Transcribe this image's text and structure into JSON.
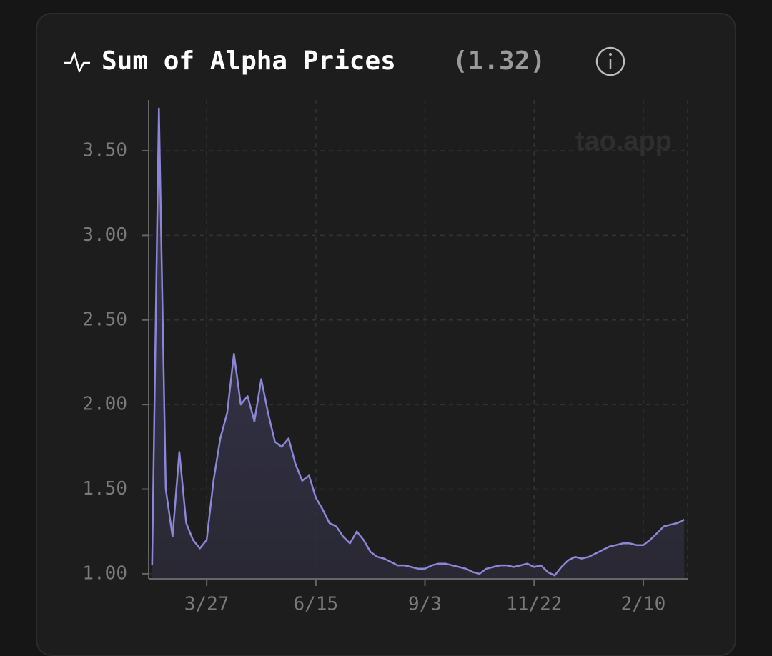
{
  "chart_data": {
    "type": "area",
    "title": "Sum of Alpha Prices",
    "subtitle": "(1.32)",
    "watermark": "tao.app",
    "color": "#8b86d6",
    "grid": true,
    "categories": [
      null,
      null,
      null,
      null,
      null,
      null,
      null,
      null,
      "3/27",
      null,
      null,
      null,
      null,
      null,
      null,
      null,
      null,
      null,
      null,
      null,
      null,
      null,
      null,
      null,
      "6/15",
      null,
      null,
      null,
      null,
      null,
      null,
      null,
      null,
      null,
      null,
      null,
      null,
      null,
      null,
      null,
      "9/3",
      null,
      null,
      null,
      null,
      null,
      null,
      null,
      null,
      null,
      null,
      null,
      null,
      null,
      null,
      null,
      "11/22",
      null,
      null,
      null,
      null,
      null,
      null,
      null,
      null,
      null,
      null,
      null,
      null,
      null,
      null,
      null,
      "2/10",
      null,
      null,
      null,
      null,
      null,
      null
    ],
    "values": [
      1.05,
      3.75,
      1.5,
      1.22,
      1.72,
      1.3,
      1.2,
      1.15,
      1.2,
      1.55,
      1.8,
      1.95,
      2.3,
      2.0,
      2.05,
      1.9,
      2.15,
      1.95,
      1.78,
      1.75,
      1.8,
      1.65,
      1.55,
      1.58,
      1.45,
      1.38,
      1.3,
      1.28,
      1.22,
      1.18,
      1.25,
      1.2,
      1.13,
      1.1,
      1.09,
      1.07,
      1.05,
      1.05,
      1.04,
      1.03,
      1.03,
      1.05,
      1.06,
      1.06,
      1.05,
      1.04,
      1.03,
      1.01,
      1.0,
      1.03,
      1.04,
      1.05,
      1.05,
      1.04,
      1.05,
      1.06,
      1.04,
      1.05,
      1.01,
      0.99,
      1.04,
      1.08,
      1.1,
      1.09,
      1.1,
      1.12,
      1.14,
      1.16,
      1.17,
      1.18,
      1.18,
      1.17,
      1.17,
      1.2,
      1.24,
      1.28,
      1.29,
      1.3,
      1.32
    ],
    "ylim": [
      0.97,
      3.8
    ],
    "yticks": [
      {
        "value": 1,
        "label": "1.00"
      },
      {
        "value": 1.5,
        "label": "1.50"
      },
      {
        "value": 2,
        "label": "2.00"
      },
      {
        "value": 2.5,
        "label": "2.50"
      },
      {
        "value": 3,
        "label": "3.00"
      },
      {
        "value": 3.5,
        "label": "3.50"
      }
    ]
  }
}
